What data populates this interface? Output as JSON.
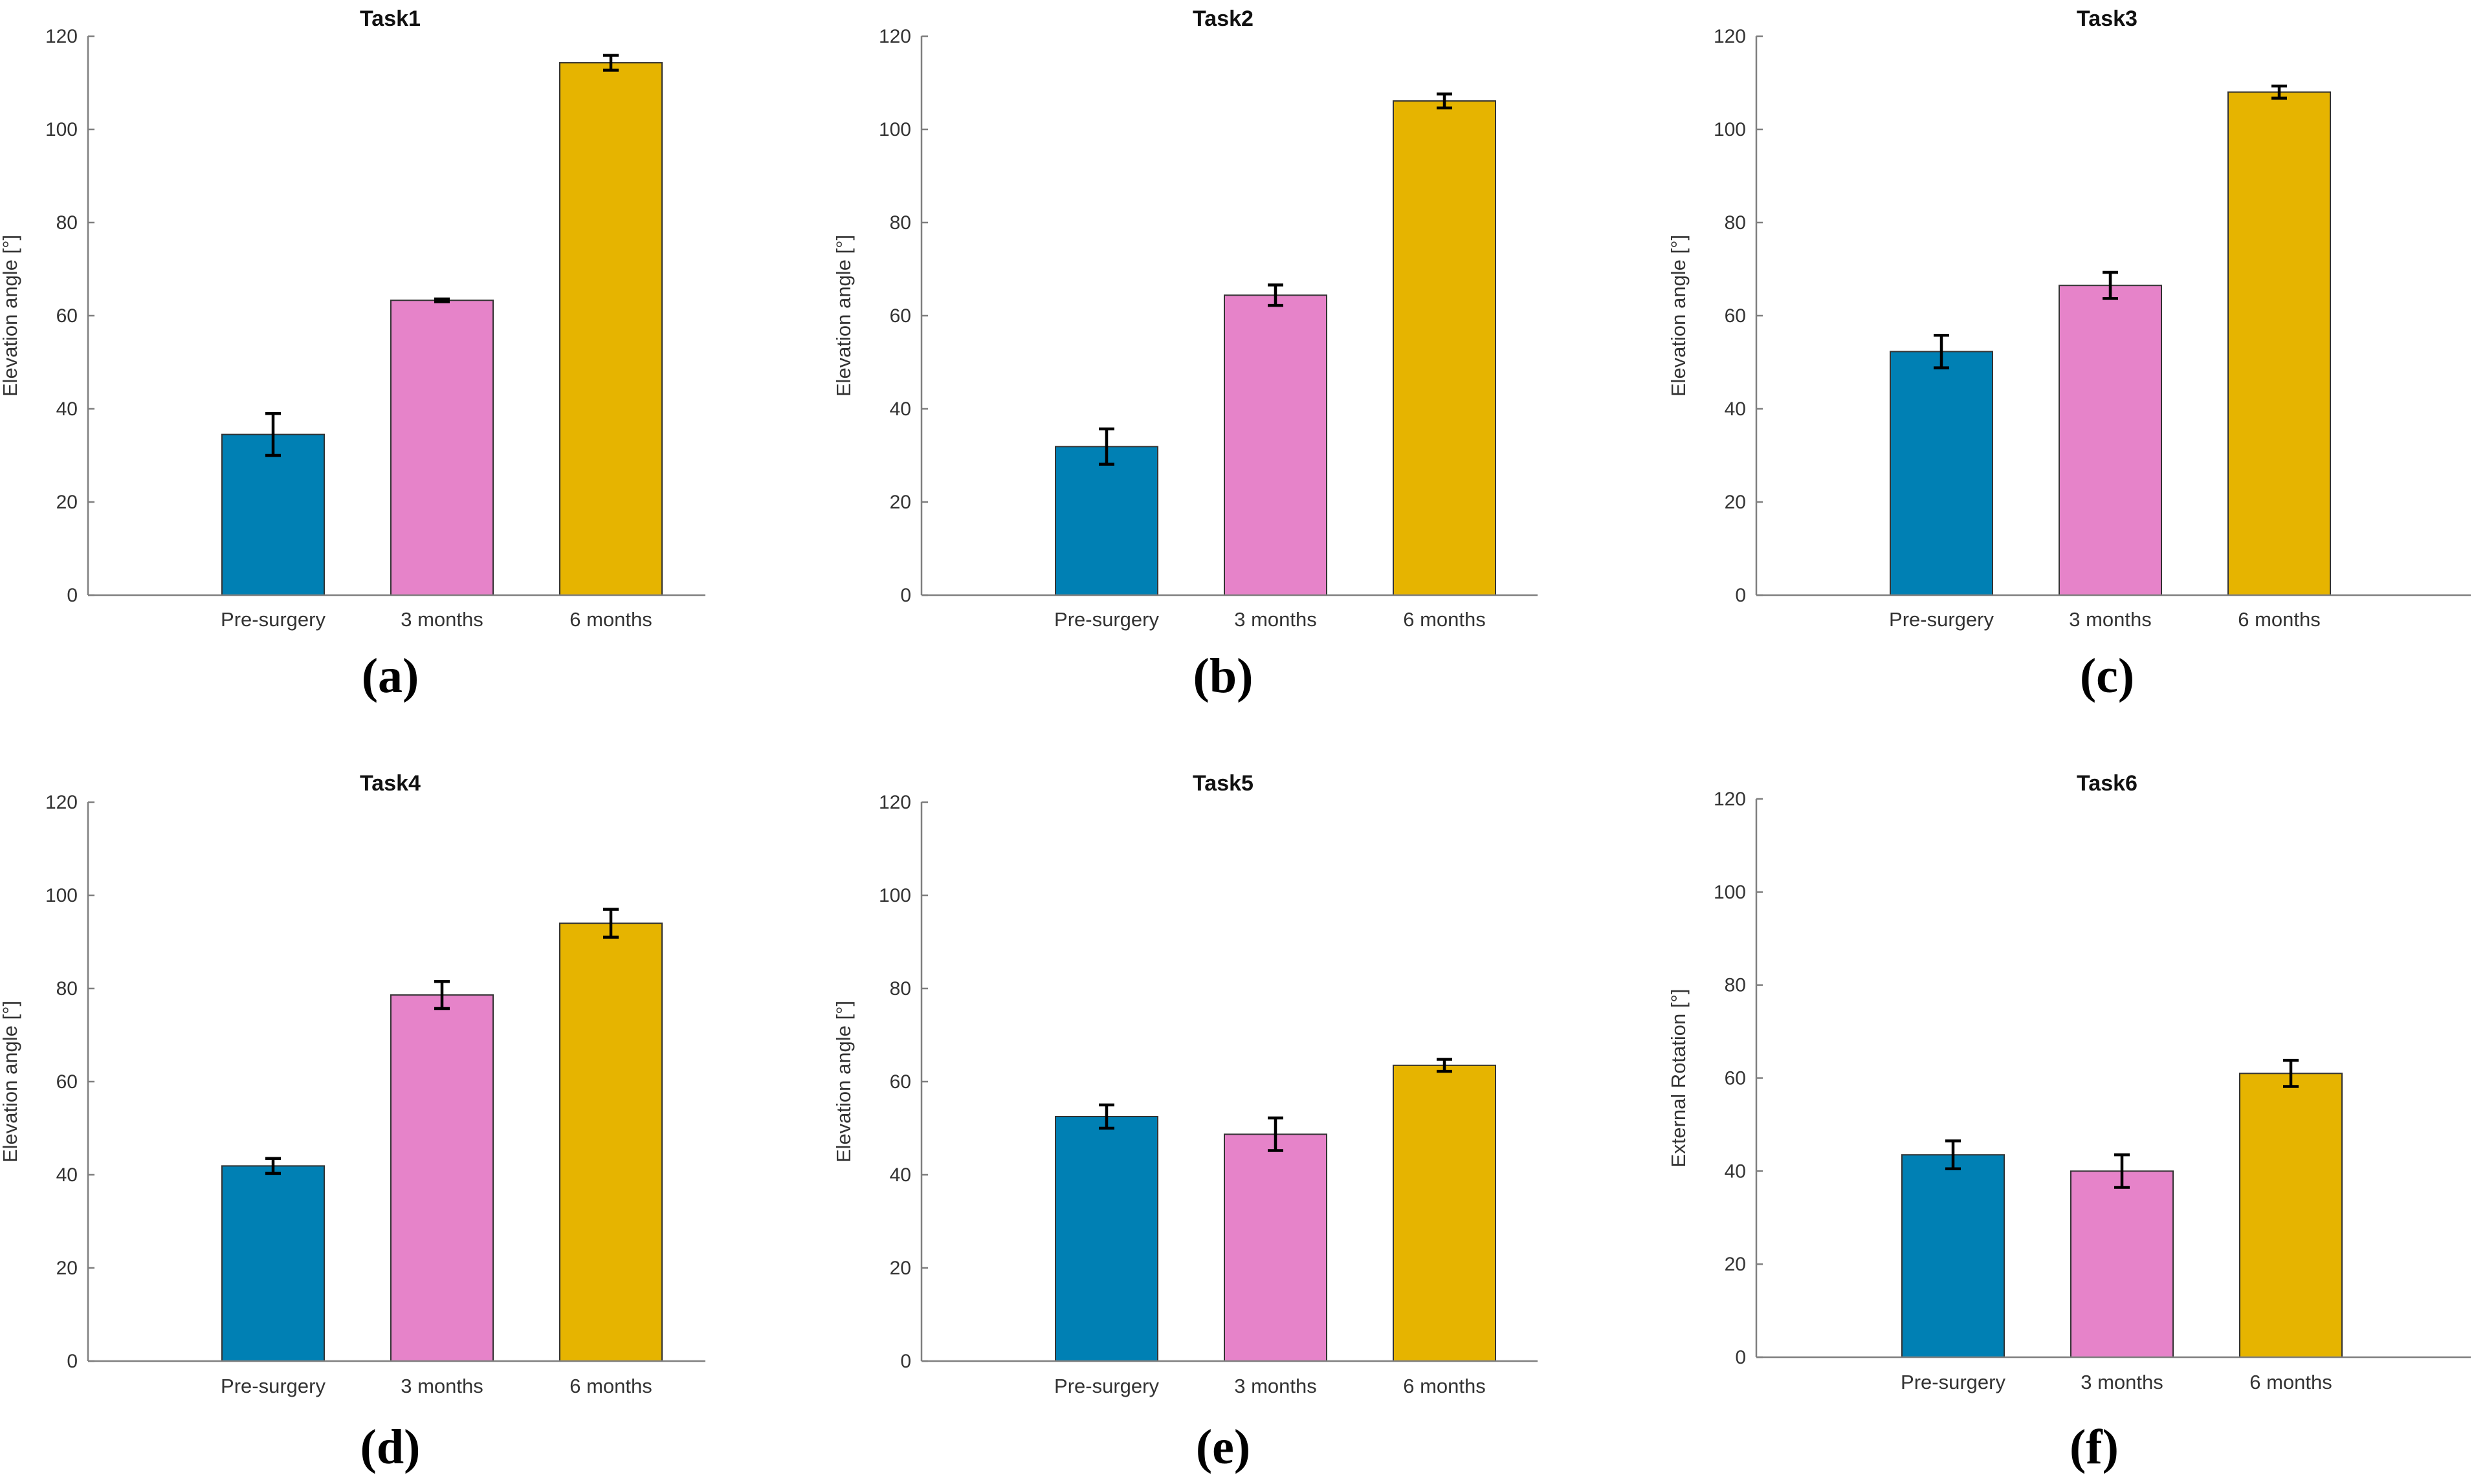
{
  "colors": {
    "Pre-surgery": "#0080b4",
    "3 months": "#e683c9",
    "6 months": "#e6b400",
    "axis": "#7f7f7f",
    "bar_edge": "#333333",
    "error_bar": "#000000"
  },
  "chart_data": [
    {
      "type": "bar",
      "panel_label": "(a)",
      "title": "Task1",
      "ylabel": "Elevation angle [°]",
      "xlabel": "",
      "categories": [
        "Pre-surgery",
        "3 months",
        "6 months"
      ],
      "values": [
        34.5,
        63.3,
        114.3
      ],
      "errors": [
        4.5,
        0.3,
        1.6
      ],
      "ylim": [
        0,
        120
      ],
      "yticks": [
        0,
        20,
        40,
        60,
        80,
        100,
        120
      ],
      "grid": false,
      "legend": "none"
    },
    {
      "type": "bar",
      "panel_label": "(b)",
      "title": "Task2",
      "ylabel": "Elevation angle [°]",
      "xlabel": "",
      "categories": [
        "Pre-surgery",
        "3 months",
        "6 months"
      ],
      "values": [
        31.9,
        64.4,
        106.1
      ],
      "errors": [
        3.8,
        2.2,
        1.5
      ],
      "ylim": [
        0,
        120
      ],
      "yticks": [
        0,
        20,
        40,
        60,
        80,
        100,
        120
      ],
      "grid": false,
      "legend": "none"
    },
    {
      "type": "bar",
      "panel_label": "(c)",
      "title": "Task3",
      "ylabel": "Elevation angle [°]",
      "xlabel": "",
      "categories": [
        "Pre-surgery",
        "3 months",
        "6 months"
      ],
      "values": [
        52.3,
        66.5,
        108.0
      ],
      "errors": [
        3.5,
        2.8,
        1.3
      ],
      "ylim": [
        0,
        120
      ],
      "yticks": [
        0,
        20,
        40,
        60,
        80,
        100,
        120
      ],
      "grid": false,
      "legend": "none"
    },
    {
      "type": "bar",
      "panel_label": "(d)",
      "title": "Task4",
      "ylabel": "Elevation angle [°]",
      "xlabel": "",
      "categories": [
        "Pre-surgery",
        "3 months",
        "6 months"
      ],
      "values": [
        41.9,
        78.6,
        94.0
      ],
      "errors": [
        1.6,
        2.9,
        3.0
      ],
      "ylim": [
        0,
        120
      ],
      "yticks": [
        0,
        20,
        40,
        60,
        80,
        100,
        120
      ],
      "grid": false,
      "legend": "none"
    },
    {
      "type": "bar",
      "panel_label": "(e)",
      "title": "Task5",
      "ylabel": "Elevation angle [°]",
      "xlabel": "",
      "categories": [
        "Pre-surgery",
        "3 months",
        "6 months"
      ],
      "values": [
        52.5,
        48.7,
        63.5
      ],
      "errors": [
        2.5,
        3.5,
        1.3
      ],
      "ylim": [
        0,
        120
      ],
      "yticks": [
        0,
        20,
        40,
        60,
        80,
        100,
        120
      ],
      "grid": false,
      "legend": "none"
    },
    {
      "type": "bar",
      "panel_label": "(f)",
      "title": "Task6",
      "ylabel": "External Rotation [°]",
      "xlabel": "",
      "categories": [
        "Pre-surgery",
        "3 months",
        "6 months"
      ],
      "values": [
        43.5,
        40.0,
        61.0
      ],
      "errors": [
        3.0,
        3.5,
        2.8
      ],
      "ylim": [
        0,
        120
      ],
      "yticks": [
        0,
        20,
        40,
        60,
        80,
        100,
        120
      ],
      "grid": false,
      "legend": "none"
    }
  ]
}
